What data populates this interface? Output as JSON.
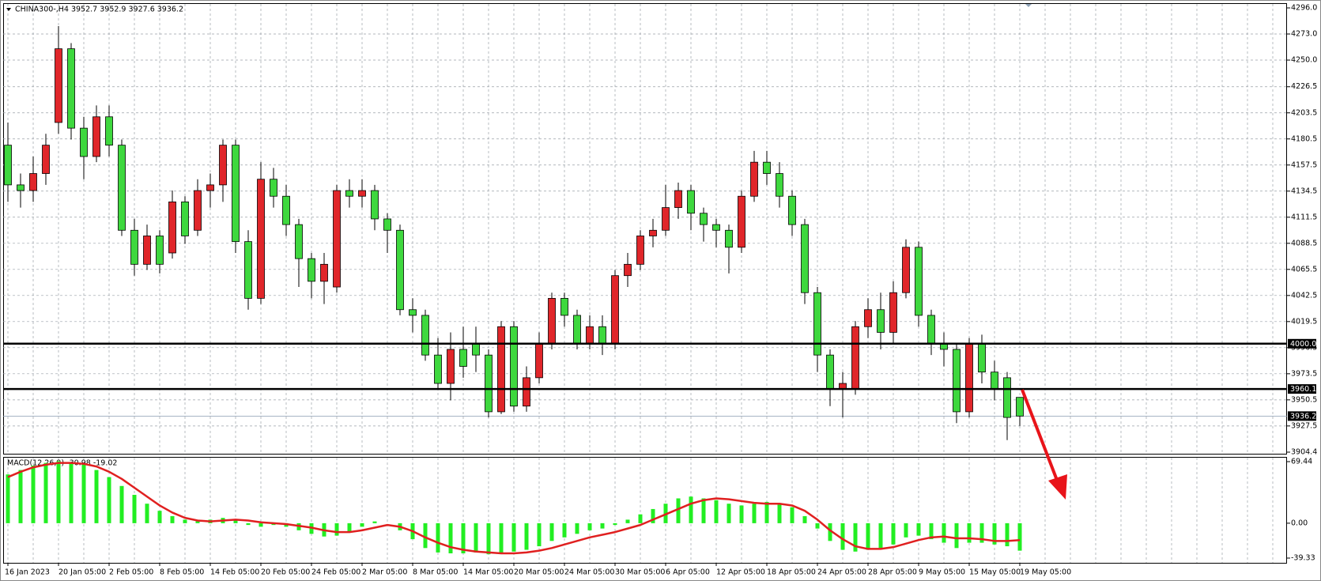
{
  "chart_data": [
    {
      "type": "candlestick",
      "title": "CHINA300-,H4 3952.7 3952.9 3927.6 3936.2",
      "categories": [
        "16 Jan 2023",
        null,
        null,
        null,
        "20 Jan 05:00",
        null,
        null,
        null,
        "2 Feb 05:00",
        null,
        null,
        null,
        "8 Feb 05:00",
        null,
        null,
        null,
        "14 Feb 05:00",
        null,
        null,
        null,
        "20 Feb 05:00",
        null,
        null,
        null,
        "24 Feb 05:00",
        null,
        null,
        null,
        "2 Mar 05:00",
        null,
        null,
        null,
        "8 Mar 05:00",
        null,
        null,
        null,
        "14 Mar 05:00",
        null,
        null,
        null,
        "20 Mar 05:00",
        null,
        null,
        null,
        "24 Mar 05:00",
        null,
        null,
        null,
        "30 Mar 05:00",
        null,
        null,
        null,
        "6 Apr 05:00",
        null,
        null,
        null,
        "12 Apr 05:00",
        null,
        null,
        null,
        "18 Apr 05:00",
        null,
        null,
        null,
        "24 Apr 05:00",
        null,
        null,
        null,
        "28 Apr 05:00",
        null,
        null,
        null,
        "9 May 05:00",
        null,
        null,
        null,
        "15 May 05:00",
        null,
        null,
        null,
        "19 May 05:00"
      ],
      "open": [
        4175,
        4140,
        4135,
        4150,
        4195,
        4260,
        4190,
        4165,
        4200,
        4175,
        4100,
        4070,
        4095,
        4080,
        4125,
        4100,
        4135,
        4140,
        4175,
        4090,
        4040,
        4145,
        4130,
        4105,
        4075,
        4055,
        4050,
        4135,
        4130,
        4135,
        4110,
        4100,
        4030,
        4025,
        3990,
        3965,
        3995,
        4000,
        3990,
        3940,
        4015,
        3945,
        3970,
        4000,
        4040,
        4025,
        4000,
        4015,
        4000,
        4060,
        4070,
        4095,
        4100,
        4120,
        4135,
        4115,
        4105,
        4100,
        4085,
        4130,
        4160,
        4150,
        4130,
        4105,
        4045,
        3990,
        3960,
        3960,
        4015,
        4030,
        4010,
        4045,
        4085,
        4025,
        4000,
        3995,
        3940,
        4000,
        3975,
        3970,
        3952.7
      ],
      "high": [
        4195,
        4150,
        4165,
        4185,
        4280,
        4265,
        4200,
        4210,
        4210,
        4180,
        4110,
        4105,
        4100,
        4135,
        4130,
        4145,
        4150,
        4180,
        4180,
        4100,
        4160,
        4155,
        4140,
        4110,
        4080,
        4080,
        4140,
        4145,
        4145,
        4140,
        4115,
        4105,
        4040,
        4030,
        4005,
        4010,
        4015,
        4015,
        3995,
        4020,
        4020,
        3980,
        4010,
        4045,
        4045,
        4030,
        4025,
        4025,
        4065,
        4080,
        4100,
        4110,
        4140,
        4142,
        4140,
        4120,
        4110,
        4105,
        4135,
        4170,
        4170,
        4160,
        4135,
        4110,
        4050,
        3995,
        3975,
        4020,
        4040,
        4045,
        4055,
        4092,
        4090,
        4030,
        4010,
        4000,
        4005,
        4008,
        3985,
        3975,
        3952.9
      ],
      "low": [
        4125,
        4120,
        4125,
        4140,
        4185,
        4180,
        4145,
        4160,
        4165,
        4095,
        4060,
        4065,
        4062,
        4075,
        4088,
        4095,
        4120,
        4125,
        4080,
        4030,
        4035,
        4120,
        4095,
        4050,
        4040,
        4035,
        4045,
        4120,
        4120,
        4100,
        4080,
        4025,
        4010,
        3985,
        3960,
        3950,
        3970,
        3975,
        3935,
        3938,
        3940,
        3940,
        3965,
        3995,
        4015,
        3995,
        3995,
        3990,
        3995,
        4050,
        4065,
        4085,
        4095,
        4110,
        4100,
        4090,
        4085,
        4062,
        4080,
        4125,
        4140,
        4120,
        4095,
        4035,
        3975,
        3945,
        3935,
        3955,
        4005,
        3995,
        4000,
        4040,
        4015,
        3990,
        3980,
        3930,
        3935,
        3965,
        3950,
        3915,
        3927.6
      ],
      "close": [
        4140,
        4135,
        4150,
        4175,
        4260,
        4190,
        4165,
        4200,
        4175,
        4100,
        4070,
        4095,
        4070,
        4125,
        4095,
        4135,
        4140,
        4175,
        4090,
        4040,
        4145,
        4130,
        4105,
        4075,
        4055,
        4070,
        4135,
        4130,
        4135,
        4110,
        4100,
        4030,
        4025,
        3990,
        3965,
        3995,
        3980,
        3990,
        3940,
        4015,
        3945,
        3970,
        4000,
        4040,
        4025,
        4000,
        4015,
        4000,
        4060,
        4070,
        4095,
        4100,
        4120,
        4135,
        4115,
        4105,
        4100,
        4085,
        4130,
        4160,
        4150,
        4130,
        4105,
        4045,
        3990,
        3960,
        3965,
        4015,
        4030,
        4010,
        4045,
        4085,
        4025,
        4000,
        3995,
        3940,
        4000,
        3975,
        3960,
        3935,
        3936.2
      ],
      "up_color": "#e0262a",
      "down_color": "#3ed83e",
      "ylim": [
        3904.4,
        4296
      ],
      "yticks": [
        {
          "value": 4296,
          "label": "4296.0"
        },
        {
          "value": 4273,
          "label": "4273.0"
        },
        {
          "value": 4250,
          "label": "4250.0"
        },
        4226.5,
        4203.5,
        4180.5,
        4157.5,
        4134.5,
        4111.5,
        4088.5,
        4065.5,
        4042.5,
        4019.5,
        3996.5,
        3973.5,
        3950.5,
        3927.5,
        3904.4
      ],
      "grid": true,
      "levels": [
        {
          "value": 4000,
          "label": "4000.0"
        },
        {
          "value": 3960.1,
          "label": "3960.1"
        }
      ],
      "bid": {
        "value": 3936.2,
        "label": "3936.2"
      }
    },
    {
      "type": "macd",
      "title": "MACD(12,26,9) -30.98 -19.02",
      "histogram": {
        "color": "#22ee22",
        "values": [
          55,
          60,
          65,
          68,
          70,
          69,
          66,
          60,
          52,
          42,
          32,
          22,
          14,
          8,
          4,
          3,
          4,
          6,
          4,
          -2,
          -4,
          -2,
          -4,
          -8,
          -12,
          -15,
          -14,
          -10,
          -4,
          2,
          0,
          -8,
          -18,
          -28,
          -33,
          -34,
          -34,
          -33,
          -35,
          -34,
          -32,
          -30,
          -26,
          -20,
          -16,
          -12,
          -8,
          -6,
          -2,
          4,
          10,
          16,
          22,
          28,
          30,
          28,
          26,
          22,
          20,
          22,
          24,
          22,
          18,
          8,
          -6,
          -20,
          -30,
          -32,
          -30,
          -28,
          -24,
          -16,
          -14,
          -18,
          -22,
          -28,
          -22,
          -22,
          -24,
          -26,
          -30.98
        ]
      },
      "signal": {
        "color": "#e02020",
        "values": [
          52,
          58,
          63,
          66,
          68,
          68,
          67,
          64,
          58,
          50,
          40,
          30,
          20,
          12,
          6,
          3,
          2,
          3,
          4,
          3,
          1,
          0,
          -1,
          -3,
          -5,
          -8,
          -10,
          -10,
          -8,
          -5,
          -2,
          -4,
          -9,
          -16,
          -22,
          -27,
          -30,
          -32,
          -33,
          -34,
          -34,
          -33,
          -31,
          -28,
          -24,
          -20,
          -16,
          -13,
          -10,
          -6,
          -2,
          4,
          10,
          16,
          22,
          26,
          28,
          27,
          25,
          23,
          22,
          22,
          20,
          14,
          4,
          -8,
          -18,
          -26,
          -29,
          -29,
          -27,
          -23,
          -19,
          -16,
          -15,
          -17,
          -17,
          -18,
          -20,
          -20,
          -19.02
        ]
      },
      "ylim": [
        -39.33,
        69.44
      ],
      "yticks": [
        69.44,
        {
          "value": 0,
          "label": "0.00"
        },
        -39.33
      ]
    }
  ]
}
